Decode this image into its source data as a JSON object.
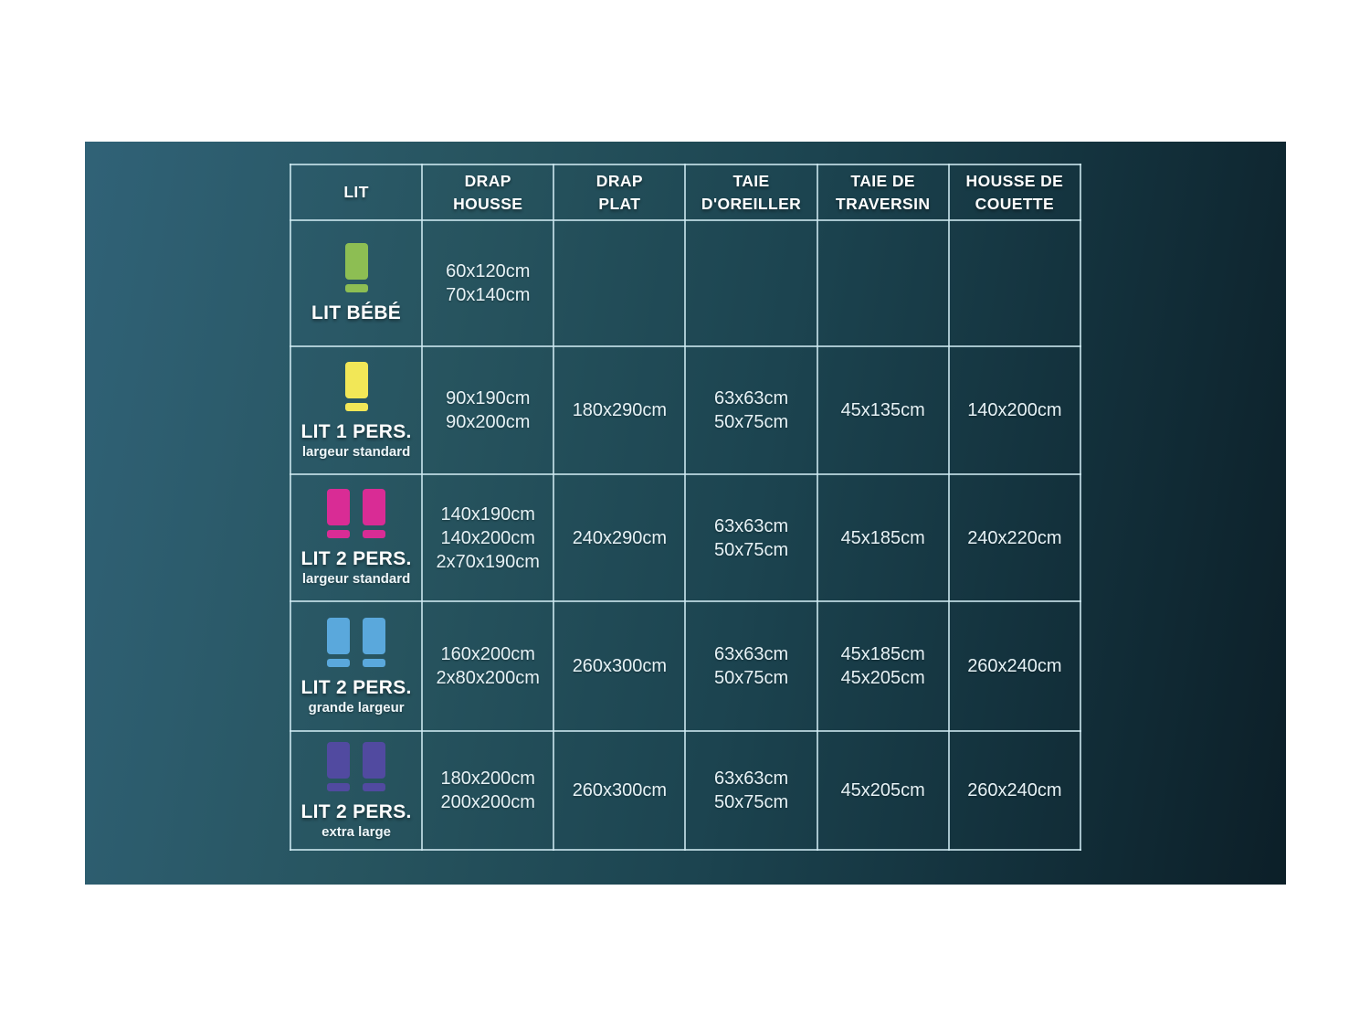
{
  "theme": {
    "page_background": "#ffffff",
    "panel_gradient_start": "#306277",
    "panel_gradient_end": "#0c1f28",
    "grid_line_color": "#cfeaf2",
    "header_text_color": "#ffffff",
    "value_text_color": "#e6f2f6"
  },
  "chart_data": {
    "type": "table",
    "title": "",
    "columns": [
      [
        "LIT"
      ],
      [
        "DRAP",
        "HOUSSE"
      ],
      [
        "DRAP",
        "PLAT"
      ],
      [
        "TAIE",
        "D'OREILLER"
      ],
      [
        "TAIE DE",
        "TRAVERSIN"
      ],
      [
        "HOUSSE DE",
        "COUETTE"
      ]
    ],
    "rows": [
      {
        "label": "LIT BÉBÉ",
        "sublabel": "",
        "icon": {
          "name": "bed-icon",
          "count": 1,
          "color": "#8dbe53"
        },
        "drap_housse": [
          "60x120cm",
          "70x140cm"
        ],
        "drap_plat": [],
        "taie_oreiller": [],
        "taie_traversin": [],
        "housse_couette": []
      },
      {
        "label": "LIT 1 PERS.",
        "sublabel": "largeur standard",
        "icon": {
          "name": "bed-icon",
          "count": 1,
          "color": "#f2e757"
        },
        "drap_housse": [
          "90x190cm",
          "90x200cm"
        ],
        "drap_plat": [
          "180x290cm"
        ],
        "taie_oreiller": [
          "63x63cm",
          "50x75cm"
        ],
        "taie_traversin": [
          "45x135cm"
        ],
        "housse_couette": [
          "140x200cm"
        ]
      },
      {
        "label": "LIT 2 PERS.",
        "sublabel": "largeur standard",
        "icon": {
          "name": "bed-icon",
          "count": 2,
          "color": "#d92c95"
        },
        "drap_housse": [
          "140x190cm",
          "140x200cm",
          "2x70x190cm"
        ],
        "drap_plat": [
          "240x290cm"
        ],
        "taie_oreiller": [
          "63x63cm",
          "50x75cm"
        ],
        "taie_traversin": [
          "45x185cm"
        ],
        "housse_couette": [
          "240x220cm"
        ]
      },
      {
        "label": "LIT 2 PERS.",
        "sublabel": "grande largeur",
        "icon": {
          "name": "bed-icon",
          "count": 2,
          "color": "#5aa8dc"
        },
        "drap_housse": [
          "160x200cm",
          "2x80x200cm"
        ],
        "drap_plat": [
          "260x300cm"
        ],
        "taie_oreiller": [
          "63x63cm",
          "50x75cm"
        ],
        "taie_traversin": [
          "45x185cm",
          "45x205cm"
        ],
        "housse_couette": [
          "260x240cm"
        ]
      },
      {
        "label": "LIT 2 PERS.",
        "sublabel": "extra large",
        "icon": {
          "name": "bed-icon",
          "count": 2,
          "color": "#514aa0"
        },
        "drap_housse": [
          "180x200cm",
          "200x200cm"
        ],
        "drap_plat": [
          "260x300cm"
        ],
        "taie_oreiller": [
          "63x63cm",
          "50x75cm"
        ],
        "taie_traversin": [
          "45x205cm"
        ],
        "housse_couette": [
          "260x240cm"
        ]
      }
    ]
  }
}
